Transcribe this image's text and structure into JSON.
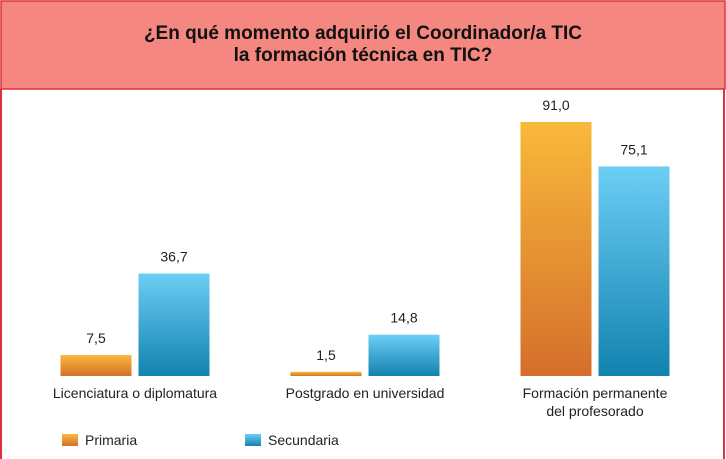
{
  "chart_data": {
    "type": "bar",
    "title": "¿En qué momento adquirió el Coordinador/a TIC\nla formación técnica en TIC?",
    "categories": [
      "Licenciatura o diplomatura",
      "Postgrado en universidad",
      "Formación permanente\ndel profesorado"
    ],
    "series": [
      {
        "name": "Primaria",
        "color": "#f9b93a",
        "values": [
          7.5,
          1.5,
          91.0
        ],
        "value_labels": [
          "7,5",
          "1,5",
          "91,0"
        ]
      },
      {
        "name": "Secundaria",
        "color": "#6ccef5",
        "values": [
          36.7,
          14.8,
          75.1
        ],
        "value_labels": [
          "36,7",
          "14,8",
          "75,1"
        ]
      }
    ],
    "legend": "bottom-left"
  }
}
